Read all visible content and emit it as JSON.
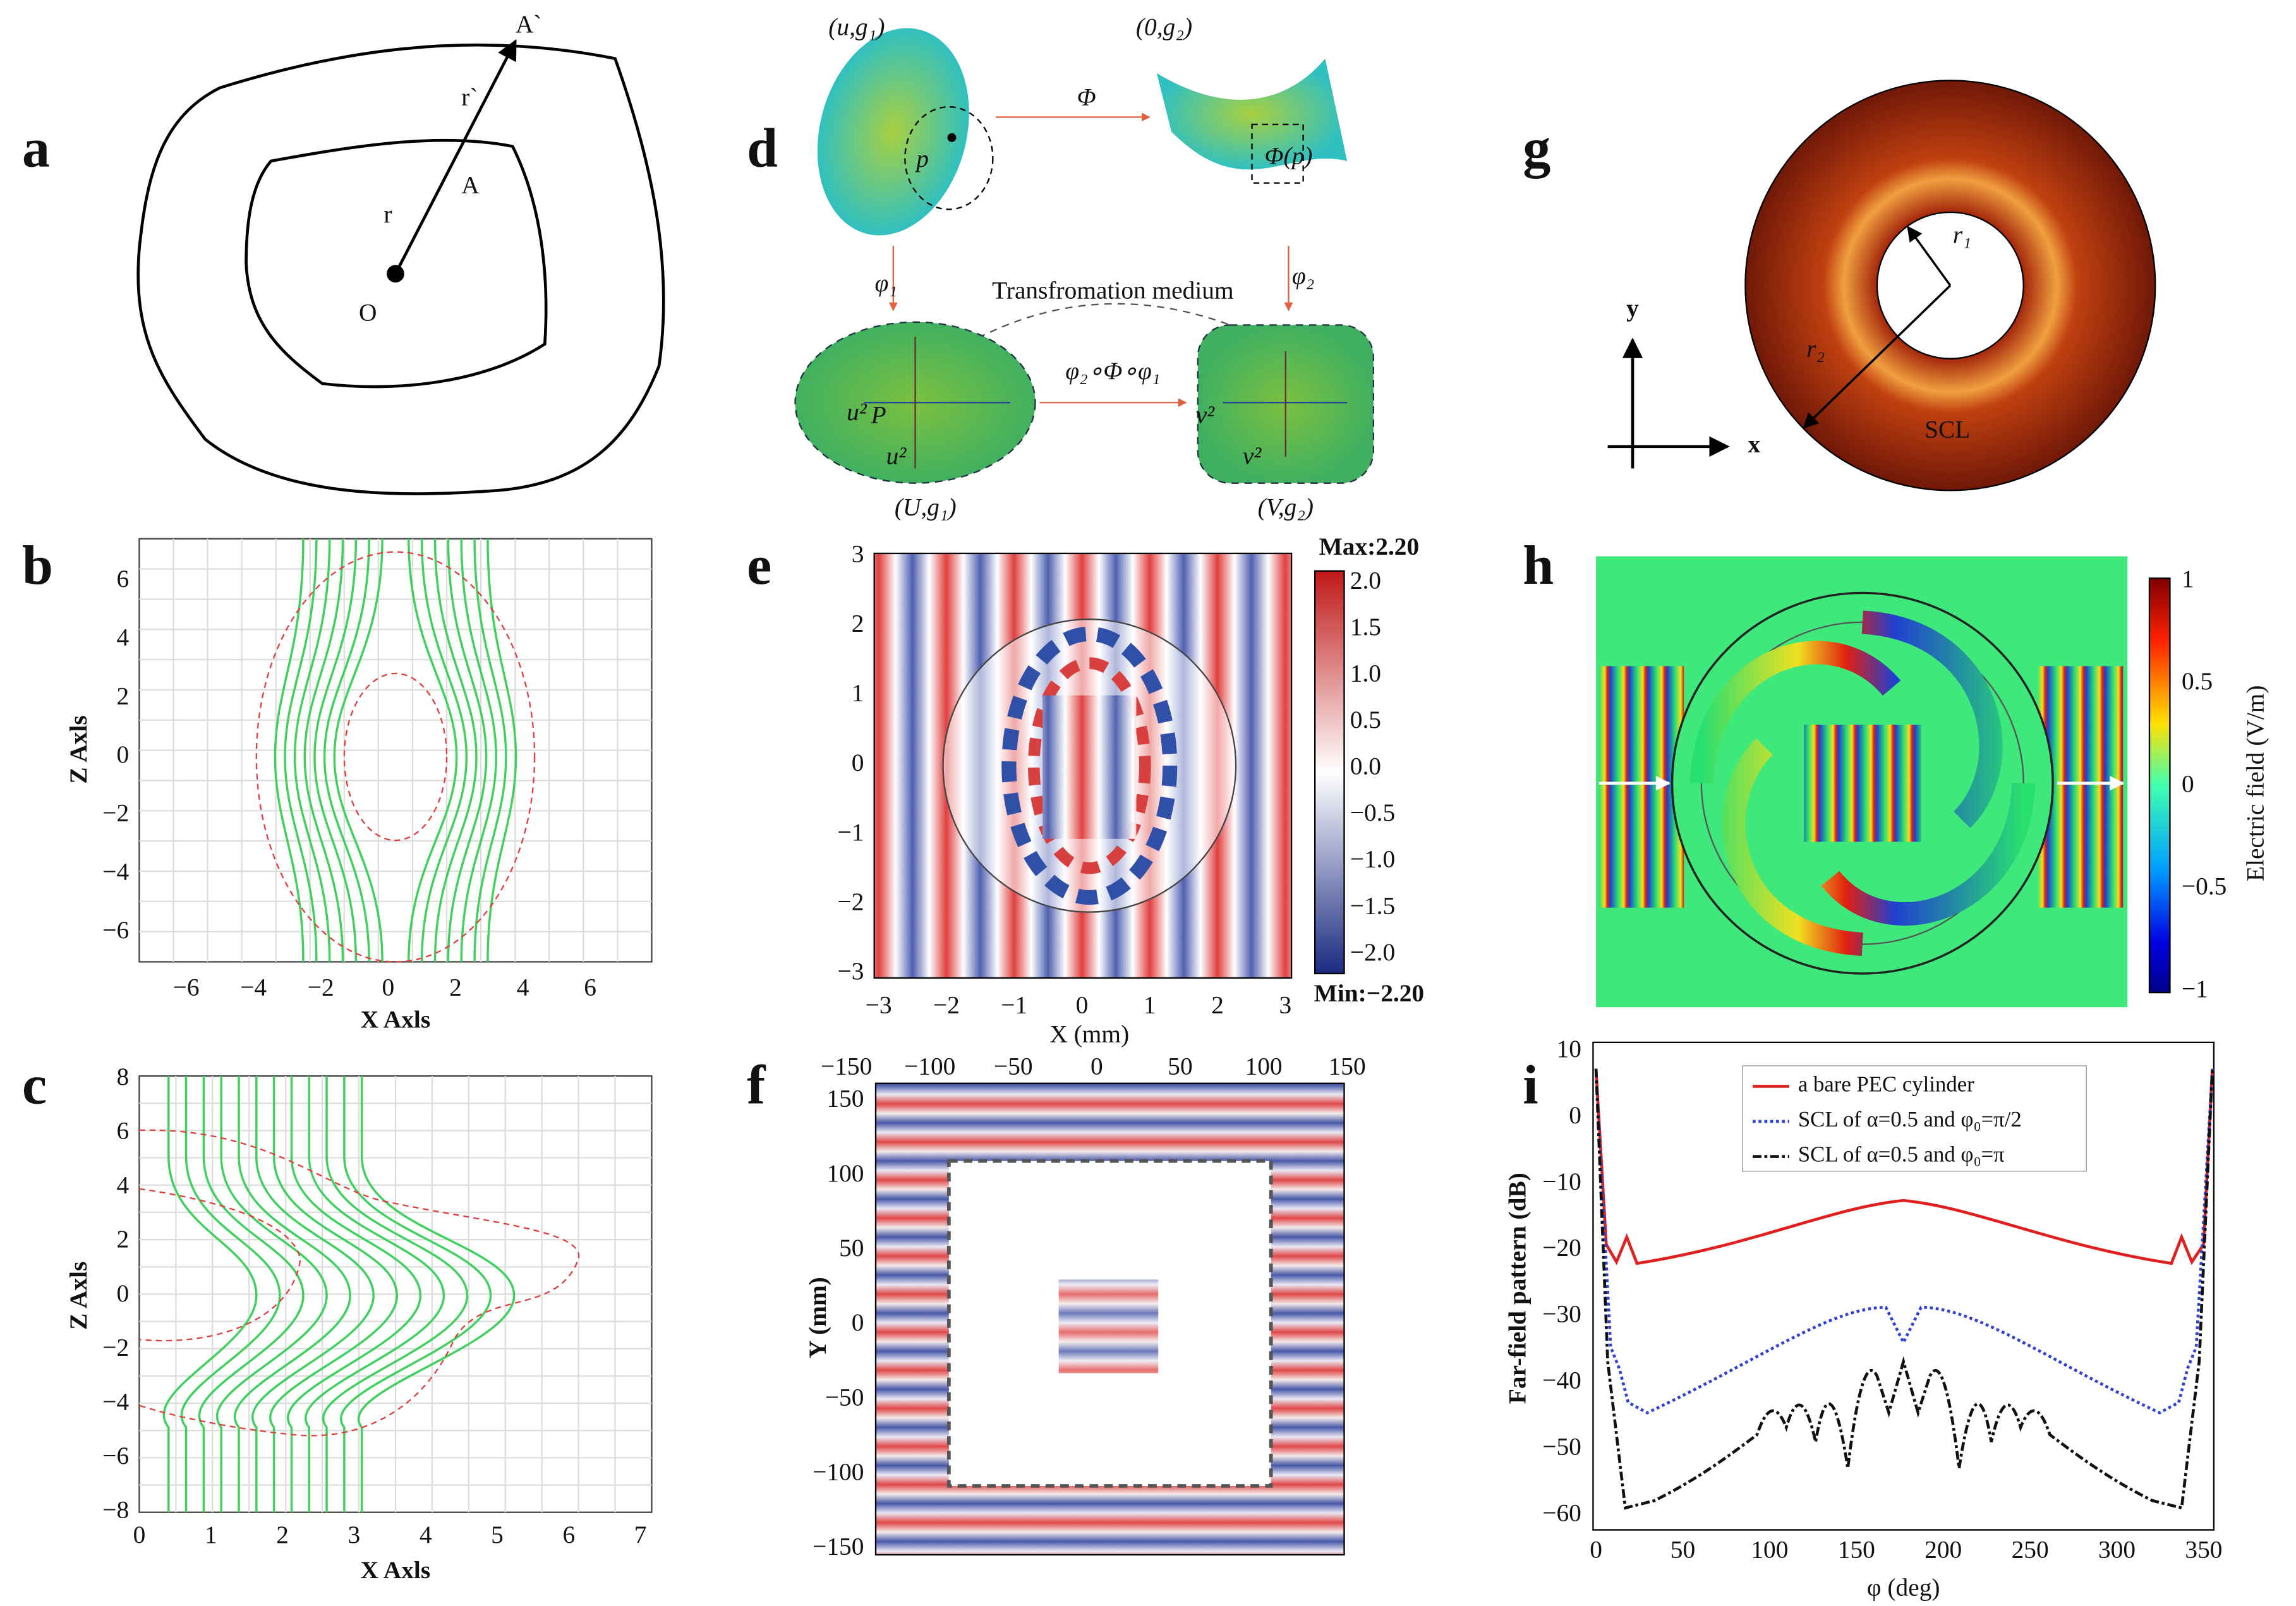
{
  "panels": {
    "a": {
      "label": "a",
      "points": [
        "A`",
        "r`",
        "A",
        "r",
        "O"
      ]
    },
    "b": {
      "label": "b",
      "xticks": [
        "−6",
        "−4",
        "−2",
        "0",
        "2",
        "4",
        "6"
      ],
      "yticks": [
        "6",
        "4",
        "2",
        "0",
        "−2",
        "−4",
        "−6"
      ],
      "xlabel": "X  Axls",
      "ylabel": "Z Axls"
    },
    "c": {
      "label": "c",
      "xticks": [
        "0",
        "1",
        "2",
        "3",
        "4",
        "5",
        "6",
        "7"
      ],
      "yticks": [
        "8",
        "6",
        "4",
        "2",
        "0",
        "−2",
        "−4",
        "−6",
        "−8"
      ],
      "xlabel": "X  Axls",
      "ylabel": "Z Axls"
    },
    "d": {
      "label": "d",
      "texts": [
        "(u,g₁)",
        "(0,g₂)",
        "Φ",
        "p",
        "Φ(p)",
        "φ₁",
        "φ₂",
        "Transfromation medium",
        "φ₂∘Φ∘φ₁",
        "P",
        "u²",
        "u²",
        "v²",
        "v²",
        "(U,g₁)",
        "(V,g₂)"
      ]
    },
    "e": {
      "label": "e",
      "xticks": [
        "−3",
        "−2",
        "−1",
        "0",
        "1",
        "2",
        "3"
      ],
      "yticks": [
        "3",
        "2",
        "1",
        "0",
        "−1",
        "−2",
        "−3"
      ],
      "xlabel": "X (mm)",
      "colorbar": [
        "Max:2.20",
        "2.0",
        "1.5",
        "1.0",
        "0.5",
        "0.0",
        "−0.5",
        "−1.0",
        "−1.5",
        "−2.0",
        "Min:−2.20"
      ]
    },
    "f": {
      "label": "f",
      "xticks": [
        "−150",
        "−100",
        "−50",
        "0",
        "50",
        "100",
        "150"
      ],
      "yticks": [
        "150",
        "100",
        "50",
        "0",
        "−50",
        "−100",
        "−150"
      ],
      "ylabel": "Y (mm)"
    },
    "g": {
      "label": "g",
      "texts": [
        "y",
        "x",
        "r₁",
        "r₂",
        "SCL"
      ]
    },
    "h": {
      "label": "h",
      "colorbar": [
        "1",
        "0.5",
        "0",
        "−0.5",
        "−1"
      ],
      "cbar_label": "Electric field (V/m)"
    },
    "i": {
      "label": "i",
      "yticks": [
        "10",
        "0",
        "−10",
        "−20",
        "−30",
        "−40",
        "−50",
        "−60"
      ],
      "xticks": [
        "0",
        "50",
        "100",
        "150",
        "200",
        "250",
        "300",
        "350"
      ],
      "xlabel": "φ (deg)",
      "ylabel": "Far-field pattern (dB)",
      "legend": [
        "a bare PEC cylinder",
        "SCL of α=0.5 and φ₀=π/2",
        "SCL of α=0.5 and φ₀=π"
      ]
    }
  }
}
